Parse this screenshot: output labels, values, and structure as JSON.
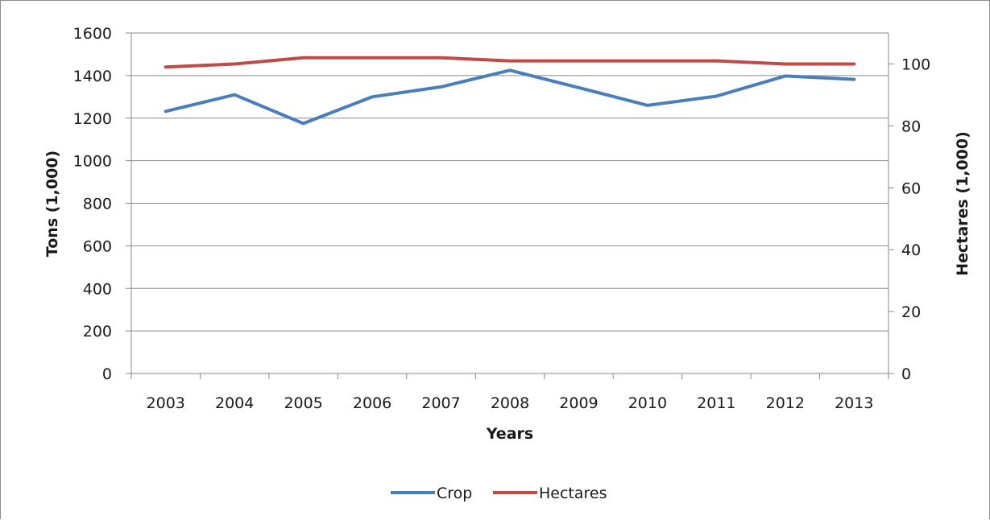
{
  "chart_data": {
    "type": "line",
    "title": "",
    "xlabel": "Years",
    "ylabel_left": "Tons (1,000)",
    "ylabel_right": "Hectares (1,000)",
    "categories": [
      "2003",
      "2004",
      "2005",
      "2006",
      "2007",
      "2008",
      "2009",
      "2010",
      "2011",
      "2012",
      "2013"
    ],
    "ylim_left": [
      0,
      1600
    ],
    "yticks_left": [
      0,
      200,
      400,
      600,
      800,
      1000,
      1200,
      1400,
      1600
    ],
    "ylim_right": [
      0,
      110
    ],
    "yticks_right": [
      0,
      20,
      40,
      60,
      80,
      100
    ],
    "grid": "horizontal",
    "legend_position": "bottom",
    "series": [
      {
        "name": "Crop",
        "axis": "left",
        "color": "#4a7ebb",
        "values": [
          1232,
          1310,
          1175,
          1300,
          1347,
          1425,
          1343,
          1260,
          1303,
          1398,
          1382
        ]
      },
      {
        "name": "Hectares",
        "axis": "right",
        "color": "#be4b48",
        "values": [
          99,
          100,
          102,
          102,
          102,
          101,
          101,
          101,
          101,
          100,
          100
        ]
      }
    ]
  }
}
